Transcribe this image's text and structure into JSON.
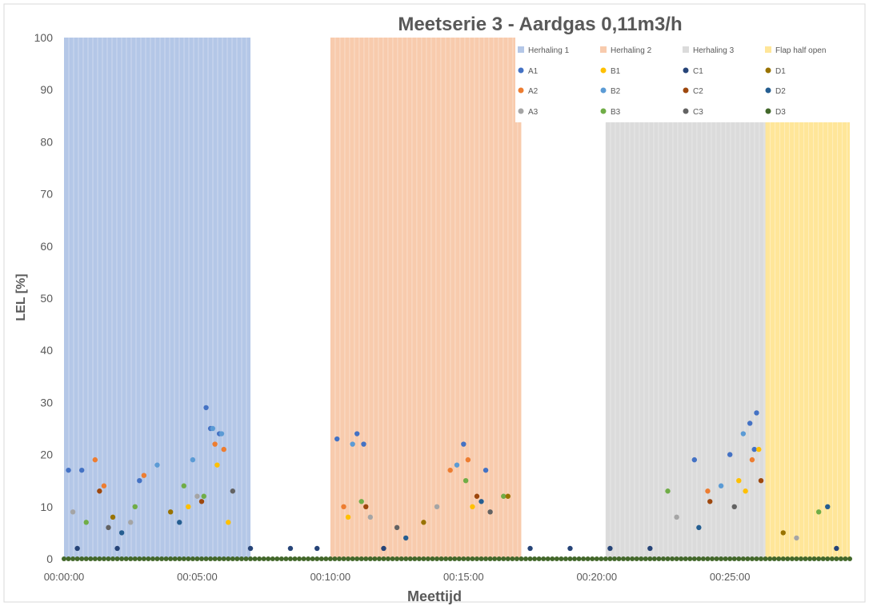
{
  "chart_data": {
    "type": "scatter",
    "title": "Meetserie 3 - Aardgas 0,11m3/h",
    "xlabel": "Meettijd",
    "ylabel": "LEL [%]",
    "x_unit": "time hh:mm:ss",
    "xlim": [
      "00:00:00",
      "00:29:30"
    ],
    "ylim": [
      0,
      100
    ],
    "x_ticks": [
      "00:00:00",
      "00:05:00",
      "00:10:00",
      "00:15:00",
      "00:20:00",
      "00:25:00"
    ],
    "y_ticks": [
      0,
      10,
      20,
      30,
      40,
      50,
      60,
      70,
      80,
      90,
      100
    ],
    "grid": false,
    "legend_position": "top-right",
    "background_bands": [
      {
        "name": "Herhaling 1",
        "color": "#B4C7E7",
        "x_start": "00:00:00",
        "x_end": "00:07:00",
        "value": 100
      },
      {
        "name": "Herhaling 2",
        "color": "#F8CBAD",
        "x_start": "00:10:00",
        "x_end": "00:17:10",
        "value": 100
      },
      {
        "name": "Herhaling 3",
        "color": "#DBDBDB",
        "x_start": "00:20:20",
        "x_end": "00:26:20",
        "value": 84
      },
      {
        "name": "Flap half open",
        "color": "#FFE699",
        "x_start": "00:26:20",
        "x_end": "00:29:30",
        "value": 84
      }
    ],
    "series": [
      {
        "name": "A1",
        "color": "#4472C4",
        "marker": "circle",
        "points": [
          [
            "00:00:10",
            17
          ],
          [
            "00:00:40",
            17
          ],
          [
            "00:02:50",
            15
          ],
          [
            "00:05:20",
            29
          ],
          [
            "00:05:30",
            25
          ],
          [
            "00:05:50",
            24
          ],
          [
            "00:10:15",
            23
          ],
          [
            "00:11:00",
            24
          ],
          [
            "00:11:15",
            22
          ],
          [
            "00:15:00",
            22
          ],
          [
            "00:15:50",
            17
          ],
          [
            "00:23:40",
            19
          ],
          [
            "00:25:00",
            20
          ],
          [
            "00:25:45",
            26
          ],
          [
            "00:26:00",
            28
          ],
          [
            "00:25:55",
            21
          ]
        ]
      },
      {
        "name": "A2",
        "color": "#ED7D31",
        "marker": "circle",
        "points": [
          [
            "00:01:10",
            19
          ],
          [
            "00:01:30",
            14
          ],
          [
            "00:03:00",
            16
          ],
          [
            "00:05:40",
            22
          ],
          [
            "00:06:00",
            21
          ],
          [
            "00:10:30",
            10
          ],
          [
            "00:14:30",
            17
          ],
          [
            "00:15:10",
            19
          ],
          [
            "00:24:10",
            13
          ],
          [
            "00:25:50",
            19
          ]
        ]
      },
      {
        "name": "A3",
        "color": "#A5A5A5",
        "marker": "circle",
        "points": [
          [
            "00:00:20",
            9
          ],
          [
            "00:02:30",
            7
          ],
          [
            "00:05:00",
            12
          ],
          [
            "00:11:30",
            8
          ],
          [
            "00:14:00",
            10
          ],
          [
            "00:23:00",
            8
          ],
          [
            "00:27:30",
            4
          ]
        ]
      },
      {
        "name": "B1",
        "color": "#FFC000",
        "marker": "circle",
        "points": [
          [
            "00:04:40",
            10
          ],
          [
            "00:05:45",
            18
          ],
          [
            "00:06:10",
            7
          ],
          [
            "00:10:40",
            8
          ],
          [
            "00:15:20",
            10
          ],
          [
            "00:25:20",
            15
          ],
          [
            "00:25:35",
            13
          ],
          [
            "00:26:05",
            21
          ]
        ]
      },
      {
        "name": "B2",
        "color": "#5B9BD5",
        "marker": "circle",
        "points": [
          [
            "00:03:30",
            18
          ],
          [
            "00:04:50",
            19
          ],
          [
            "00:05:35",
            25
          ],
          [
            "00:05:55",
            24
          ],
          [
            "00:10:50",
            22
          ],
          [
            "00:14:45",
            18
          ],
          [
            "00:24:40",
            14
          ],
          [
            "00:25:30",
            24
          ]
        ]
      },
      {
        "name": "B3",
        "color": "#70AD47",
        "marker": "circle",
        "points": [
          [
            "00:00:50",
            7
          ],
          [
            "00:02:40",
            10
          ],
          [
            "00:04:30",
            14
          ],
          [
            "00:05:15",
            12
          ],
          [
            "00:11:10",
            11
          ],
          [
            "00:15:05",
            15
          ],
          [
            "00:16:30",
            12
          ],
          [
            "00:22:40",
            13
          ],
          [
            "00:28:20",
            9
          ]
        ]
      },
      {
        "name": "C1",
        "color": "#264478",
        "marker": "circle",
        "points": [
          [
            "00:00:30",
            2
          ],
          [
            "00:02:00",
            2
          ],
          [
            "00:07:00",
            2
          ],
          [
            "00:08:30",
            2
          ],
          [
            "00:09:30",
            2
          ],
          [
            "00:12:00",
            2
          ],
          [
            "00:17:30",
            2
          ],
          [
            "00:19:00",
            2
          ],
          [
            "00:20:30",
            2
          ],
          [
            "00:22:00",
            2
          ],
          [
            "00:29:00",
            2
          ]
        ]
      },
      {
        "name": "C2",
        "color": "#9E480E",
        "marker": "circle",
        "points": [
          [
            "00:01:20",
            13
          ],
          [
            "00:05:10",
            11
          ],
          [
            "00:11:20",
            10
          ],
          [
            "00:15:30",
            12
          ],
          [
            "00:24:15",
            11
          ],
          [
            "00:26:10",
            15
          ]
        ]
      },
      {
        "name": "C3",
        "color": "#636363",
        "marker": "circle",
        "points": [
          [
            "00:01:40",
            6
          ],
          [
            "00:06:20",
            13
          ],
          [
            "00:12:30",
            6
          ],
          [
            "00:16:00",
            9
          ],
          [
            "00:25:10",
            10
          ]
        ]
      },
      {
        "name": "D1",
        "color": "#997300",
        "marker": "circle",
        "points": [
          [
            "00:01:50",
            8
          ],
          [
            "00:04:00",
            9
          ],
          [
            "00:13:30",
            7
          ],
          [
            "00:16:40",
            12
          ],
          [
            "00:27:00",
            5
          ]
        ]
      },
      {
        "name": "D2",
        "color": "#255E91",
        "marker": "circle",
        "points": [
          [
            "00:02:10",
            5
          ],
          [
            "00:04:20",
            7
          ],
          [
            "00:12:50",
            4
          ],
          [
            "00:15:40",
            11
          ],
          [
            "00:23:50",
            6
          ],
          [
            "00:28:40",
            10
          ]
        ]
      },
      {
        "name": "D3",
        "color": "#43682B",
        "marker": "circle",
        "points": [
          [
            "00:00:00",
            0
          ],
          [
            "00:29:30",
            0
          ]
        ]
      }
    ],
    "legend_entries": [
      {
        "label": "Herhaling 1",
        "color": "#B4C7E7",
        "marker": "square"
      },
      {
        "label": "Herhaling 2",
        "color": "#F8CBAD",
        "marker": "square"
      },
      {
        "label": "Herhaling 3",
        "color": "#DBDBDB",
        "marker": "square"
      },
      {
        "label": "Flap half open",
        "color": "#FFE699",
        "marker": "square"
      },
      {
        "label": "A1",
        "color": "#4472C4",
        "marker": "circle"
      },
      {
        "label": "B1",
        "color": "#FFC000",
        "marker": "circle"
      },
      {
        "label": "C1",
        "color": "#264478",
        "marker": "circle"
      },
      {
        "label": "D1",
        "color": "#997300",
        "marker": "circle"
      },
      {
        "label": "A2",
        "color": "#ED7D31",
        "marker": "circle"
      },
      {
        "label": "B2",
        "color": "#5B9BD5",
        "marker": "circle"
      },
      {
        "label": "C2",
        "color": "#9E480E",
        "marker": "circle"
      },
      {
        "label": "D2",
        "color": "#255E91",
        "marker": "circle"
      },
      {
        "label": "A3",
        "color": "#A5A5A5",
        "marker": "circle"
      },
      {
        "label": "B3",
        "color": "#70AD47",
        "marker": "circle"
      },
      {
        "label": "C3",
        "color": "#636363",
        "marker": "circle"
      },
      {
        "label": "D3",
        "color": "#43682B",
        "marker": "circle"
      }
    ]
  }
}
